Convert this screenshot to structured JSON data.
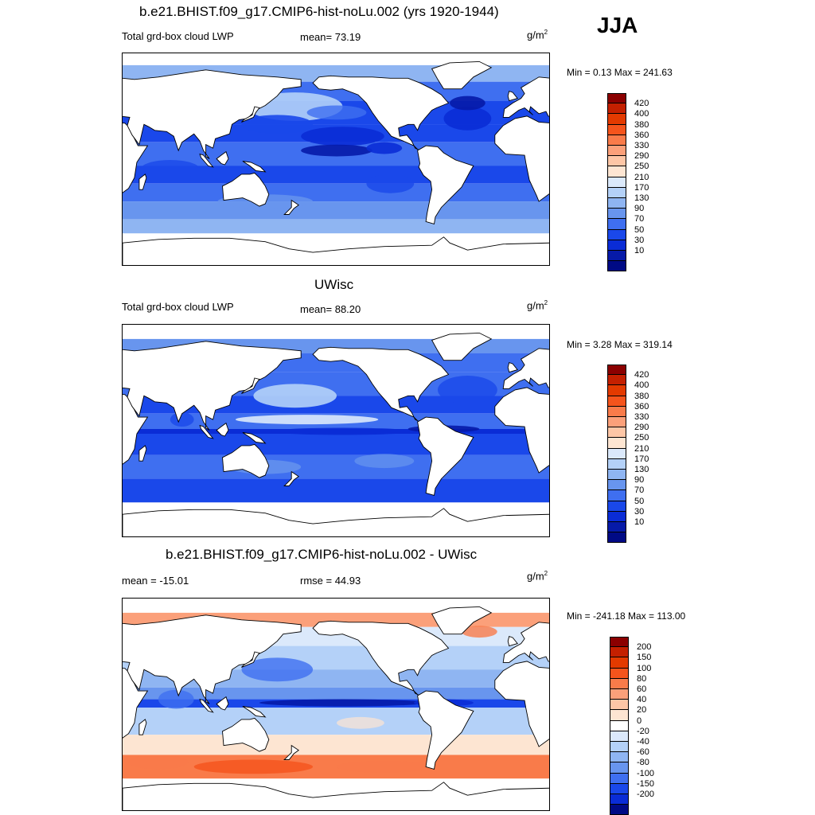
{
  "season": "JJA",
  "panels": [
    {
      "title": "b.e21.BHIST.f09_g17.CMIP6-hist-noLu.002 (yrs 1920-1944)",
      "left_label": "Total grd-box cloud LWP",
      "center_label": "mean=  73.19",
      "units_base": "g/m",
      "units_exp": "2",
      "minmax": "Min =   0.13 Max = 241.63",
      "colorbar": {
        "colors": [
          "#8b0000",
          "#c42000",
          "#e33a00",
          "#f5541c",
          "#f97b4a",
          "#fba07a",
          "#fdc6a6",
          "#fde5d2",
          "#dbe9fb",
          "#b4d1f8",
          "#8fb5f2",
          "#6895ee",
          "#3f6ff0",
          "#1a48ea",
          "#0a2cd6",
          "#061aa8",
          "#000a85"
        ],
        "labels": [
          "420",
          "400",
          "380",
          "360",
          "330",
          "290",
          "250",
          "210",
          "170",
          "130",
          "90",
          "70",
          "50",
          "30",
          "10"
        ]
      }
    },
    {
      "title": "UWisc",
      "left_label": "Total grd-box cloud LWP",
      "center_label": "mean=  88.20",
      "units_base": "g/m",
      "units_exp": "2",
      "minmax": "Min =   3.28 Max = 319.14",
      "colorbar": {
        "colors": [
          "#8b0000",
          "#c42000",
          "#e33a00",
          "#f5541c",
          "#f97b4a",
          "#fba07a",
          "#fdc6a6",
          "#fde5d2",
          "#dbe9fb",
          "#b4d1f8",
          "#8fb5f2",
          "#6895ee",
          "#3f6ff0",
          "#1a48ea",
          "#0a2cd6",
          "#061aa8",
          "#000a85"
        ],
        "labels": [
          "420",
          "400",
          "380",
          "360",
          "330",
          "290",
          "250",
          "210",
          "170",
          "130",
          "90",
          "70",
          "50",
          "30",
          "10"
        ]
      }
    },
    {
      "title": "b.e21.BHIST.f09_g17.CMIP6-hist-noLu.002 - UWisc",
      "left_label": "mean = -15.01",
      "center_label": "rmse =  44.93",
      "units_base": "g/m",
      "units_exp": "2",
      "minmax": "Min = -241.18 Max = 113.00",
      "colorbar": {
        "colors": [
          "#8b0000",
          "#c42000",
          "#e33a00",
          "#f5541c",
          "#f97b4a",
          "#fba07a",
          "#fdc6a6",
          "#fde5d2",
          "#ffffff",
          "#dbe9fb",
          "#b4d1f8",
          "#8fb5f2",
          "#6895ee",
          "#3f6ff0",
          "#1a48ea",
          "#0a2cd6",
          "#000a85"
        ],
        "labels": [
          "200",
          "150",
          "100",
          "80",
          "60",
          "40",
          "20",
          "0",
          "-20",
          "-40",
          "-60",
          "-80",
          "-100",
          "-150",
          "-200"
        ]
      }
    }
  ],
  "chart_data": [
    {
      "type": "heatmap",
      "title": "b.e21.BHIST.f09_g17.CMIP6-hist-noLu.002 (yrs 1920-1944)",
      "variable": "Total grd-box cloud LWP",
      "units": "g/m2",
      "mean": 73.19,
      "min": 0.13,
      "max": 241.63,
      "levels": [
        10,
        30,
        50,
        70,
        90,
        130,
        170,
        210,
        250,
        290,
        330,
        360,
        380,
        400,
        420
      ]
    },
    {
      "type": "heatmap",
      "title": "UWisc",
      "variable": "Total grd-box cloud LWP",
      "units": "g/m2",
      "mean": 88.2,
      "min": 3.28,
      "max": 319.14,
      "levels": [
        10,
        30,
        50,
        70,
        90,
        130,
        170,
        210,
        250,
        290,
        330,
        360,
        380,
        400,
        420
      ]
    },
    {
      "type": "heatmap",
      "title": "b.e21.BHIST.f09_g17.CMIP6-hist-noLu.002 - UWisc",
      "units": "g/m2",
      "mean": -15.01,
      "rmse": 44.93,
      "min": -241.18,
      "max": 113.0,
      "levels": [
        -200,
        -150,
        -100,
        -80,
        -60,
        -40,
        -20,
        0,
        20,
        40,
        60,
        80,
        100,
        150,
        200
      ]
    }
  ]
}
